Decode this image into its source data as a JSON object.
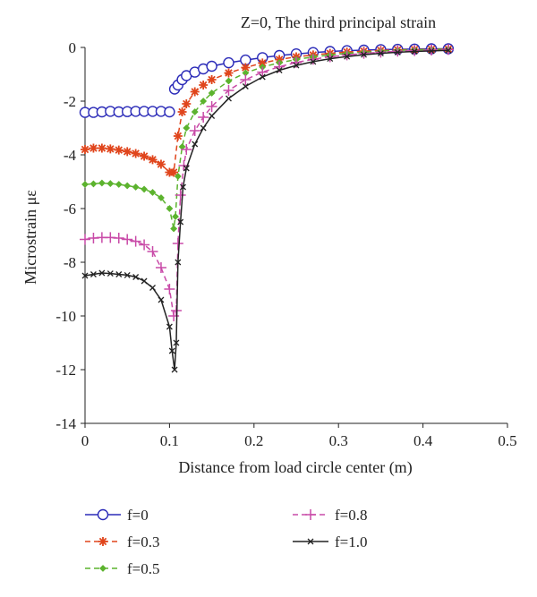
{
  "chart_data": {
    "type": "line",
    "title": "Z=0, The third principal strain",
    "xlabel": "Distance from load circle center (m)",
    "ylabel": "Microstrain με",
    "xlim": [
      0,
      0.5
    ],
    "ylim": [
      -14,
      0
    ],
    "xticks": [
      "0",
      "0.1",
      "0.2",
      "0.3",
      "0.4",
      "0.5"
    ],
    "yticks": [
      "0",
      "-2",
      "-4",
      "-6",
      "-8",
      "-10",
      "-12",
      "-14"
    ],
    "grid": false,
    "legend_position": "bottom",
    "series": [
      {
        "name": "f=0",
        "color": "#2b2bb8",
        "marker": "circle-open",
        "dash": "solid",
        "x": [
          0.0,
          0.01,
          0.02,
          0.03,
          0.04,
          0.05,
          0.06,
          0.07,
          0.08,
          0.09,
          0.1,
          0.103,
          0.106,
          0.11,
          0.115,
          0.12,
          0.13,
          0.14,
          0.15,
          0.17,
          0.19,
          0.21,
          0.23,
          0.25,
          0.27,
          0.29,
          0.31,
          0.33,
          0.35,
          0.37,
          0.39,
          0.41,
          0.43
        ],
        "y": [
          -2.42,
          -2.42,
          -2.4,
          -2.38,
          -2.4,
          -2.39,
          -2.38,
          -2.38,
          -2.38,
          -2.38,
          -2.4,
          null,
          -1.55,
          -1.4,
          -1.2,
          -1.05,
          -0.92,
          -0.8,
          -0.7,
          -0.57,
          -0.47,
          -0.38,
          -0.3,
          -0.24,
          -0.19,
          -0.15,
          -0.12,
          -0.1,
          -0.08,
          -0.07,
          -0.06,
          -0.05,
          -0.05
        ]
      },
      {
        "name": "f=0.3",
        "color": "#e0451c",
        "marker": "asterisk",
        "dash": "dashed",
        "x": [
          0.0,
          0.01,
          0.02,
          0.03,
          0.04,
          0.05,
          0.06,
          0.07,
          0.08,
          0.09,
          0.1,
          0.105,
          0.11,
          0.115,
          0.12,
          0.13,
          0.14,
          0.15,
          0.17,
          0.19,
          0.21,
          0.23,
          0.25,
          0.27,
          0.29,
          0.31,
          0.33,
          0.35,
          0.37,
          0.39,
          0.41,
          0.43
        ],
        "y": [
          -3.8,
          -3.75,
          -3.75,
          -3.78,
          -3.82,
          -3.88,
          -3.95,
          -4.05,
          -4.18,
          -4.35,
          -4.65,
          -4.65,
          -3.3,
          -2.4,
          -2.1,
          -1.65,
          -1.4,
          -1.2,
          -0.95,
          -0.75,
          -0.58,
          -0.45,
          -0.35,
          -0.28,
          -0.22,
          -0.17,
          -0.14,
          -0.11,
          -0.09,
          -0.08,
          -0.07,
          -0.06
        ]
      },
      {
        "name": "f=0.5",
        "color": "#5cb32e",
        "marker": "diamond-filled",
        "dash": "dashed",
        "x": [
          0.0,
          0.01,
          0.02,
          0.03,
          0.04,
          0.05,
          0.06,
          0.07,
          0.08,
          0.09,
          0.1,
          0.105,
          0.107,
          0.11,
          0.115,
          0.12,
          0.13,
          0.14,
          0.15,
          0.17,
          0.19,
          0.21,
          0.23,
          0.25,
          0.27,
          0.29,
          0.31,
          0.33,
          0.35,
          0.37,
          0.39,
          0.41,
          0.43
        ],
        "y": [
          -5.1,
          -5.08,
          -5.05,
          -5.07,
          -5.1,
          -5.15,
          -5.2,
          -5.28,
          -5.4,
          -5.6,
          -6.0,
          -6.75,
          -6.3,
          -4.8,
          -3.7,
          -3.0,
          -2.4,
          -2.0,
          -1.7,
          -1.25,
          -0.95,
          -0.73,
          -0.57,
          -0.45,
          -0.35,
          -0.28,
          -0.22,
          -0.18,
          -0.14,
          -0.11,
          -0.09,
          -0.08,
          -0.07
        ]
      },
      {
        "name": "f=0.8",
        "color": "#c94ba8",
        "marker": "plus",
        "dash": "dashed",
        "x": [
          0.0,
          0.01,
          0.02,
          0.03,
          0.04,
          0.05,
          0.06,
          0.07,
          0.08,
          0.09,
          0.1,
          0.105,
          0.108,
          0.11,
          0.113,
          0.117,
          0.12,
          0.13,
          0.14,
          0.15,
          0.17,
          0.19,
          0.21,
          0.23,
          0.25,
          0.27,
          0.29,
          0.31,
          0.33,
          0.35,
          0.37,
          0.39,
          0.41,
          0.43
        ],
        "y": [
          -7.15,
          -7.1,
          -7.08,
          -7.08,
          -7.1,
          -7.15,
          -7.22,
          -7.35,
          -7.6,
          -8.2,
          -9.0,
          -10.0,
          -9.8,
          -7.3,
          -5.5,
          -4.4,
          -3.8,
          -3.1,
          -2.6,
          -2.2,
          -1.6,
          -1.2,
          -0.92,
          -0.72,
          -0.56,
          -0.44,
          -0.35,
          -0.28,
          -0.22,
          -0.18,
          -0.14,
          -0.12,
          -0.1,
          -0.08
        ]
      },
      {
        "name": "f=1.0",
        "color": "#222222",
        "marker": "x",
        "dash": "solid",
        "x": [
          0.0,
          0.01,
          0.02,
          0.03,
          0.04,
          0.05,
          0.06,
          0.07,
          0.08,
          0.09,
          0.1,
          0.103,
          0.106,
          0.108,
          0.11,
          0.113,
          0.116,
          0.12,
          0.13,
          0.14,
          0.15,
          0.17,
          0.19,
          0.21,
          0.23,
          0.25,
          0.27,
          0.29,
          0.31,
          0.33,
          0.35,
          0.37,
          0.39,
          0.41,
          0.43
        ],
        "y": [
          -8.5,
          -8.45,
          -8.4,
          -8.42,
          -8.45,
          -8.48,
          -8.55,
          -8.7,
          -8.95,
          -9.4,
          -10.4,
          -11.3,
          -12.0,
          -11.0,
          -8.0,
          -6.5,
          -5.2,
          -4.5,
          -3.6,
          -3.0,
          -2.55,
          -1.9,
          -1.45,
          -1.1,
          -0.85,
          -0.67,
          -0.53,
          -0.42,
          -0.34,
          -0.27,
          -0.22,
          -0.18,
          -0.15,
          -0.13,
          -0.11
        ]
      }
    ]
  }
}
